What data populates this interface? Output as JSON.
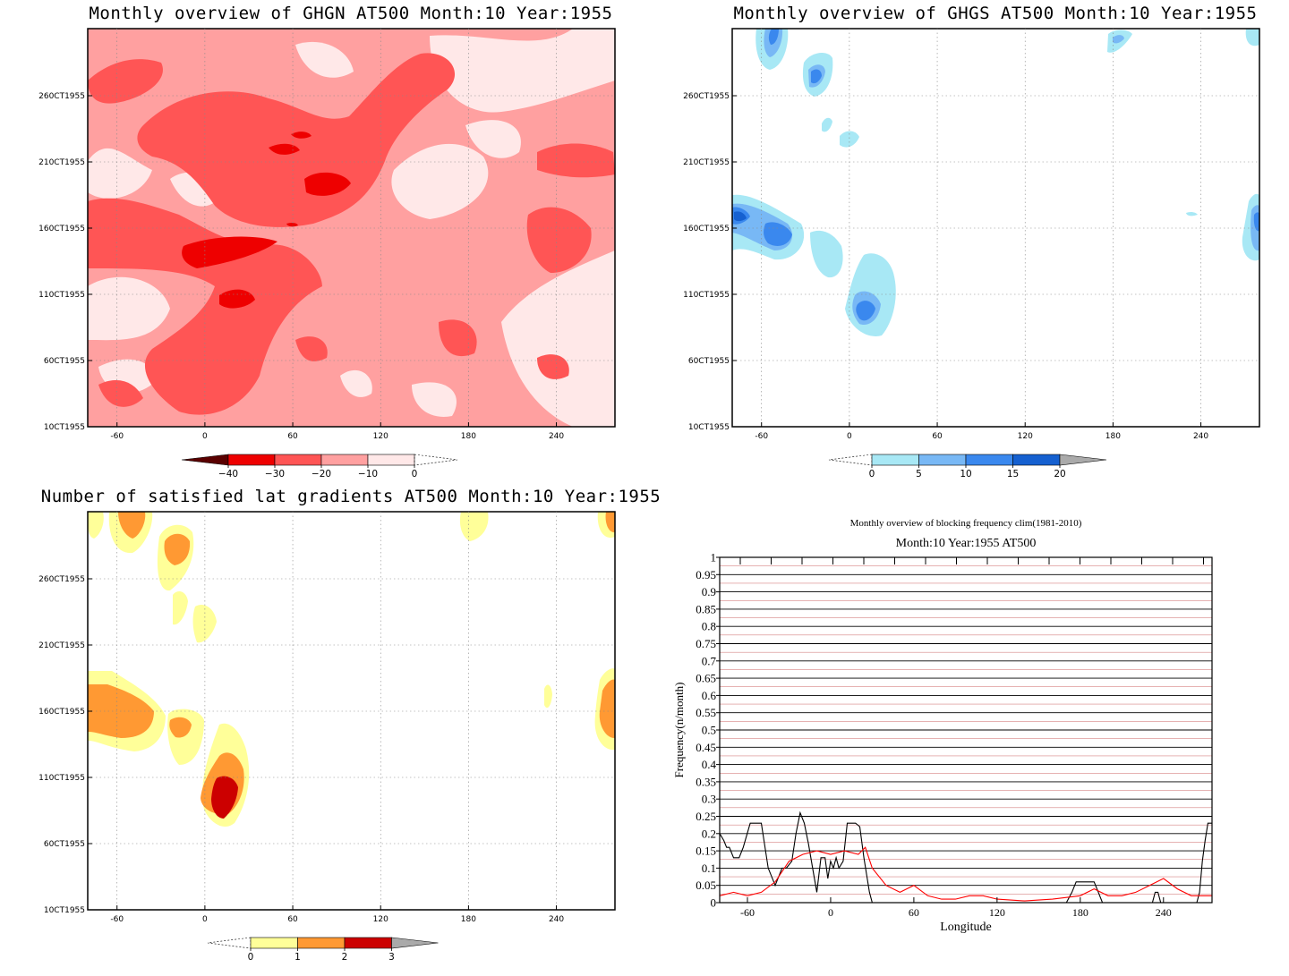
{
  "chart_data": [
    {
      "type": "heatmap",
      "title": "Monthly overview of GHGN AT500 Month:10 Year:1955",
      "x_ticks": [
        "-60",
        "0",
        "60",
        "120",
        "180",
        "240"
      ],
      "y_ticks": [
        "10CT1955",
        "60CT1955",
        "110CT1955",
        "160CT1955",
        "210CT1955",
        "260CT1955"
      ],
      "colorbar": {
        "levels": [
          "-40",
          "-30",
          "-20",
          "-10",
          "0"
        ],
        "colors": [
          "#5a0000",
          "#ee0000",
          "#ff5555",
          "#ffa0a0",
          "#ffe8e8"
        ]
      }
    },
    {
      "type": "heatmap",
      "title": "Monthly overview of GHGS AT500 Month:10 Year:1955",
      "x_ticks": [
        "-60",
        "0",
        "60",
        "120",
        "180",
        "240"
      ],
      "y_ticks": [
        "10CT1955",
        "60CT1955",
        "110CT1955",
        "160CT1955",
        "210CT1955",
        "260CT1955"
      ],
      "colorbar": {
        "levels": [
          "0",
          "5",
          "10",
          "15",
          "20"
        ],
        "colors": [
          "#a8e8f5",
          "#78b8f5",
          "#3a88ee",
          "#1560d0",
          "#aaaaaa"
        ]
      }
    },
    {
      "type": "heatmap",
      "title": "Number of satisfied lat gradients AT500 Month:10 Year:1955",
      "x_ticks": [
        "-60",
        "0",
        "60",
        "120",
        "180",
        "240"
      ],
      "y_ticks": [
        "10CT1955",
        "60CT1955",
        "110CT1955",
        "160CT1955",
        "210CT1955",
        "260CT1955"
      ],
      "colorbar": {
        "levels": [
          "0",
          "1",
          "2",
          "3"
        ],
        "colors": [
          "#ffff99",
          "#ff9933",
          "#cc0000",
          "#aaaaaa"
        ]
      }
    },
    {
      "type": "line",
      "title": "Monthly overview of blocking frequency clim(1981-2010)",
      "subtitle": "Month:10 Year:1955  AT500",
      "xlabel": "Longitude",
      "ylabel": "Frequency(n/month)",
      "xlim": [
        -80,
        275
      ],
      "ylim": [
        0,
        1
      ],
      "x_ticks": [
        -60,
        0,
        60,
        120,
        180,
        240
      ],
      "y_ticks": [
        0,
        0.05,
        0.1,
        0.15,
        0.2,
        0.25,
        0.3,
        0.35,
        0.4,
        0.45,
        0.5,
        0.55,
        0.6,
        0.65,
        0.7,
        0.75,
        0.8,
        0.85,
        0.9,
        0.95,
        1
      ],
      "series": [
        {
          "color": "#000000",
          "x": [
            -80,
            -77,
            -75,
            -73,
            -70,
            -66,
            -63,
            -58,
            -53,
            -50,
            -45,
            -40,
            -35,
            -32,
            -28,
            -25,
            -22,
            -19,
            -16,
            -13,
            -10,
            -7,
            -4,
            -2,
            0,
            2,
            4,
            6,
            9,
            12,
            15,
            18,
            21,
            24,
            26,
            28,
            30,
            32,
            35,
            40,
            60,
            100,
            140,
            170,
            174,
            177,
            180,
            185,
            190,
            193,
            196,
            200,
            220,
            232,
            234,
            236,
            238,
            242,
            260,
            264,
            266,
            268,
            270,
            272,
            275
          ],
          "y": [
            0.2,
            0.18,
            0.16,
            0.16,
            0.13,
            0.13,
            0.16,
            0.23,
            0.23,
            0.23,
            0.1,
            0.05,
            0.1,
            0.1,
            0.12,
            0.2,
            0.26,
            0.23,
            0.17,
            0.1,
            0.03,
            0.13,
            0.13,
            0.07,
            0.12,
            0.1,
            0.13,
            0.1,
            0.12,
            0.23,
            0.23,
            0.23,
            0.22,
            0.13,
            0.08,
            0.03,
            0,
            0,
            0,
            0,
            0,
            0,
            0,
            0,
            0.03,
            0.06,
            0.06,
            0.06,
            0.06,
            0.03,
            0,
            0,
            0,
            0,
            0.03,
            0.03,
            0,
            0,
            0,
            0,
            0.03,
            0.12,
            0.18,
            0.23,
            0.23
          ]
        },
        {
          "color": "#ff0000",
          "x": [
            -80,
            -70,
            -60,
            -50,
            -40,
            -30,
            -20,
            -10,
            0,
            10,
            20,
            25,
            30,
            40,
            50,
            60,
            70,
            80,
            90,
            100,
            110,
            120,
            140,
            160,
            180,
            190,
            200,
            210,
            220,
            230,
            240,
            250,
            260,
            275
          ],
          "y": [
            0.02,
            0.03,
            0.02,
            0.03,
            0.06,
            0.12,
            0.14,
            0.15,
            0.14,
            0.15,
            0.14,
            0.16,
            0.1,
            0.05,
            0.03,
            0.05,
            0.02,
            0.01,
            0.01,
            0.02,
            0.02,
            0.01,
            0.005,
            0.01,
            0.02,
            0.04,
            0.02,
            0.02,
            0.03,
            0.05,
            0.07,
            0.04,
            0.02,
            0.02
          ]
        }
      ]
    }
  ]
}
